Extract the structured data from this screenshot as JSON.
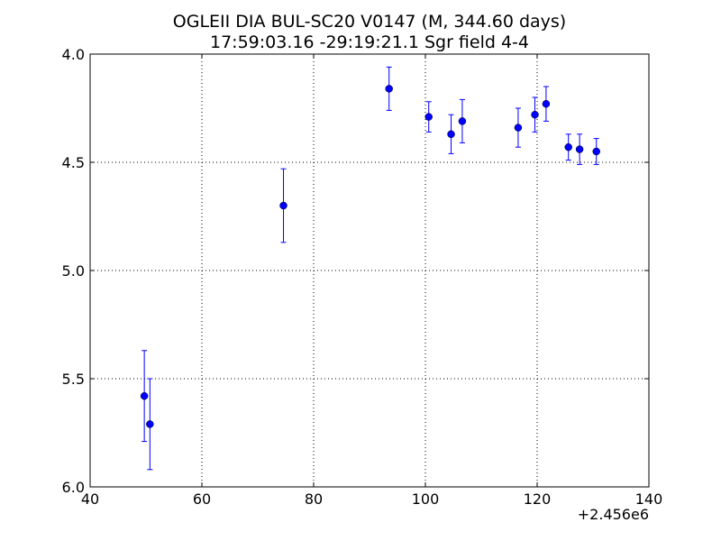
{
  "chart_data": {
    "type": "scatter",
    "title": "OGLEII DIA BUL-SC20 V0147 (M, 344.60 days)",
    "subtitle": "17:59:03.16 -29:19:21.1 Sgr field 4-4",
    "xlabel": "",
    "ylabel": "",
    "x_offset_label": "+2.456e6",
    "xlim": [
      40,
      140
    ],
    "ylim": [
      6.0,
      4.0
    ],
    "y_inverted": true,
    "grid": true,
    "x_ticks": [
      "40",
      "60",
      "80",
      "100",
      "120",
      "140"
    ],
    "y_ticks": [
      "4.0",
      "4.5",
      "5.0",
      "5.5",
      "6.0"
    ],
    "marker_color": "#0000ff",
    "series": [
      {
        "points": [
          {
            "x": 49.7,
            "y": 5.58,
            "err": 0.21
          },
          {
            "x": 50.7,
            "y": 5.71,
            "err": 0.21
          },
          {
            "x": 74.6,
            "y": 4.7,
            "err": 0.17
          },
          {
            "x": 93.5,
            "y": 4.16,
            "err": 0.1
          },
          {
            "x": 100.6,
            "y": 4.29,
            "err": 0.07
          },
          {
            "x": 104.6,
            "y": 4.37,
            "err": 0.09
          },
          {
            "x": 106.6,
            "y": 4.31,
            "err": 0.1
          },
          {
            "x": 116.6,
            "y": 4.34,
            "err": 0.09
          },
          {
            "x": 119.6,
            "y": 4.28,
            "err": 0.08
          },
          {
            "x": 121.6,
            "y": 4.23,
            "err": 0.08
          },
          {
            "x": 125.6,
            "y": 4.43,
            "err": 0.06
          },
          {
            "x": 127.6,
            "y": 4.44,
            "err": 0.07
          },
          {
            "x": 130.6,
            "y": 4.45,
            "err": 0.06
          }
        ]
      }
    ]
  }
}
